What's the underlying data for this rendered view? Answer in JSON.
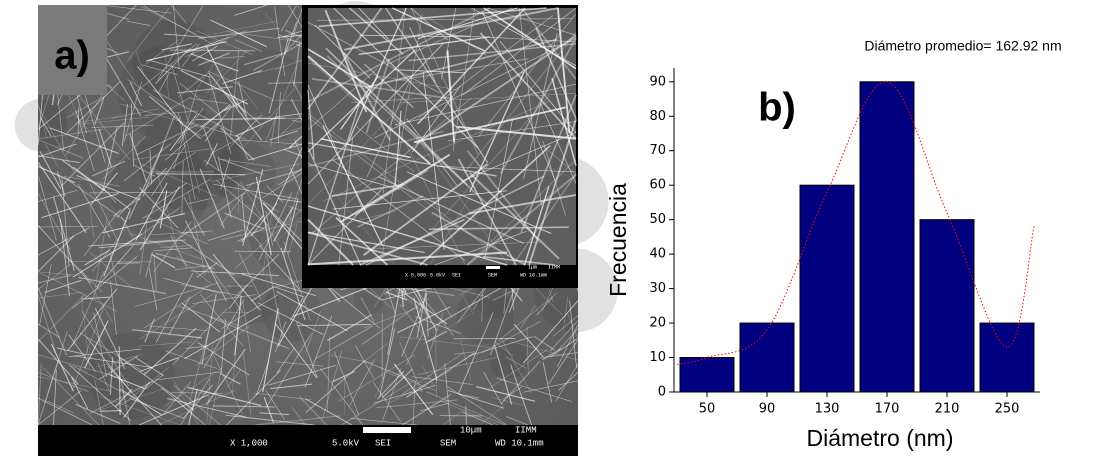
{
  "panel_a": {
    "label": "a)",
    "magnification": "X 1,000",
    "voltage": "5.0kV",
    "mode": "SEI",
    "instrument": "SEM",
    "working_distance": "WD 10.1mm",
    "scale_bar": "10µm",
    "lab": "IIMM",
    "inset": {
      "magnification": "X 5,000",
      "voltage": "5.0kV",
      "mode": "SEI",
      "instrument": "SEM",
      "working_distance": "WD 10.1mm",
      "scale_bar": "1µm",
      "lab": "IIMM"
    }
  },
  "chart_data": {
    "type": "bar",
    "annotation": "Diámetro promedio= 162.92 nm",
    "panel_label": "b)",
    "x_label": "Diámetro (nm)",
    "y_label": "Frecuencia",
    "x": [
      50,
      90,
      130,
      170,
      210,
      250
    ],
    "values": [
      10,
      20,
      60,
      90,
      50,
      20
    ],
    "color": "#000080",
    "xlim": [
      28,
      272
    ],
    "xticks": [
      50,
      90,
      130,
      170,
      210,
      250
    ],
    "ylim": [
      0,
      94
    ],
    "yticks": [
      0,
      10,
      20,
      30,
      40,
      50,
      60,
      70,
      80,
      90
    ],
    "fit": {
      "color": "#ff0000",
      "x": [
        30,
        50,
        90,
        130,
        170,
        210,
        250,
        268
      ],
      "values": [
        8,
        10,
        18,
        58,
        90,
        52,
        13,
        48
      ]
    }
  }
}
